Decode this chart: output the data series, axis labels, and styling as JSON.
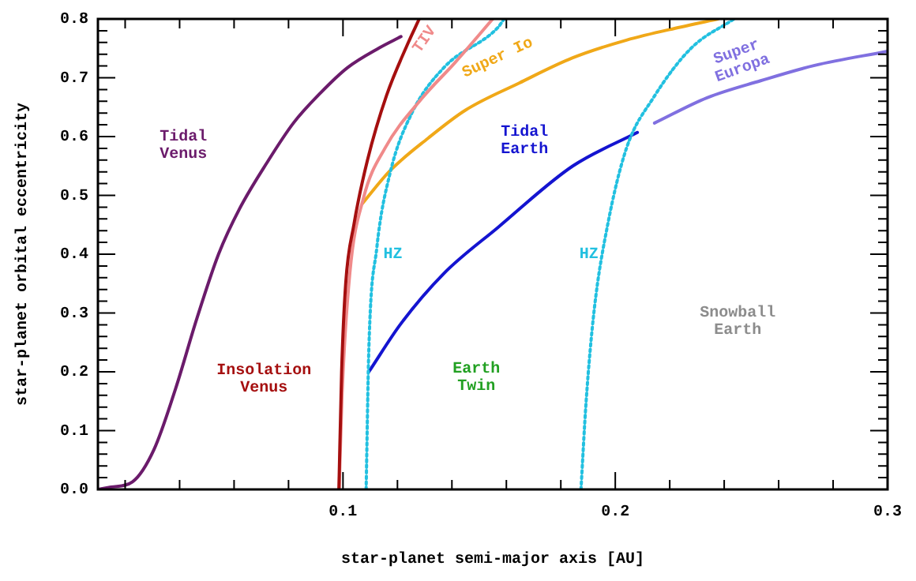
{
  "chart_data": {
    "type": "line",
    "xlabel": "star-planet semi-major axis [AU]",
    "ylabel": "star-planet orbital eccentricity",
    "xlim": [
      0.01,
      0.3
    ],
    "ylim": [
      0,
      0.8
    ],
    "xticks": [
      {
        "value": 0.02,
        "label": null
      },
      {
        "value": 0.04,
        "label": null
      },
      {
        "value": 0.06,
        "label": null
      },
      {
        "value": 0.08,
        "label": null
      },
      0.1,
      {
        "value": 0.12,
        "label": null
      },
      {
        "value": 0.14,
        "label": null
      },
      {
        "value": 0.16,
        "label": null
      },
      {
        "value": 0.18,
        "label": null
      },
      0.2,
      {
        "value": 0.22,
        "label": null
      },
      {
        "value": 0.24,
        "label": null
      },
      {
        "value": 0.26,
        "label": null
      },
      {
        "value": 0.28,
        "label": null
      },
      0.3
    ],
    "yticks": [
      {
        "value": 0,
        "label": "0.0"
      },
      0.1,
      0.2,
      0.3,
      0.4,
      0.5,
      0.6,
      0.7,
      0.8
    ],
    "grid": false,
    "legend": false,
    "marker": "none",
    "series": [
      {
        "name": "Tidal Venus",
        "color": "#6b1b6b",
        "line_style": "solid",
        "x": [
          0.01,
          0.0148,
          0.0227,
          0.0306,
          0.0385,
          0.0463,
          0.0543,
          0.0621,
          0.072,
          0.0818,
          0.0917,
          0.1016,
          0.1134,
          0.1213
        ],
        "values": [
          0,
          0.004,
          0.013,
          0.068,
          0.171,
          0.29,
          0.4,
          0.478,
          0.555,
          0.623,
          0.674,
          0.717,
          0.751,
          0.77
        ]
      },
      {
        "name": "Insolation Venus",
        "color": "#a50f0f",
        "line_style": "solid",
        "x": [
          0.0985,
          0.0995,
          0.101,
          0.104,
          0.109,
          0.116,
          0.124,
          0.128
        ],
        "values": [
          0,
          0.2,
          0.35,
          0.45,
          0.56,
          0.67,
          0.76,
          0.8
        ]
      },
      {
        "name": "TIV",
        "color": "#f08a8a",
        "line_style": "solid",
        "x": [
          0.0986,
          0.0996,
          0.1025,
          0.1075,
          0.1154,
          0.1292,
          0.141,
          0.155
        ],
        "values": [
          0,
          0.154,
          0.367,
          0.495,
          0.58,
          0.666,
          0.725,
          0.8
        ]
      },
      {
        "name": "HZ",
        "color": "#22c0e0",
        "line_style": "dotted",
        "x": [
          0.1085,
          0.1095,
          0.1124,
          0.1173,
          0.1253,
          0.137,
          0.1568,
          0.1592
        ],
        "values": [
          0,
          0.239,
          0.41,
          0.538,
          0.64,
          0.717,
          0.785,
          0.8
        ]
      },
      {
        "name": "HZ",
        "color": "#22c0e0",
        "line_style": "dotted",
        "x": [
          0.1874,
          0.1893,
          0.1923,
          0.1972,
          0.2041,
          0.214,
          0.2278,
          0.2436
        ],
        "values": [
          0,
          0.15,
          0.307,
          0.45,
          0.58,
          0.666,
          0.75,
          0.8
        ]
      },
      {
        "name": "Super Io",
        "color": "#f0a818",
        "line_style": "solid",
        "x": [
          0.1071,
          0.1173,
          0.1312,
          0.145,
          0.1647,
          0.1844,
          0.2041,
          0.2238,
          0.2377
        ],
        "values": [
          0.486,
          0.542,
          0.597,
          0.645,
          0.691,
          0.734,
          0.764,
          0.786,
          0.8
        ]
      },
      {
        "name": "Tidal Earth",
        "color": "#1414d0",
        "line_style": "solid",
        "x": [
          0.1095,
          0.1213,
          0.137,
          0.1568,
          0.1844,
          0.2081
        ],
        "values": [
          0.2,
          0.282,
          0.367,
          0.445,
          0.55,
          0.607
        ]
      },
      {
        "name": "Super Europa",
        "color": "#8070e0",
        "line_style": "solid",
        "x": [
          0.2144,
          0.2337,
          0.2534,
          0.2732,
          0.3
        ],
        "values": [
          0.623,
          0.666,
          0.695,
          0.721,
          0.745
        ]
      }
    ],
    "annotations": [
      "Earth Twin",
      "Snowball Earth"
    ]
  }
}
